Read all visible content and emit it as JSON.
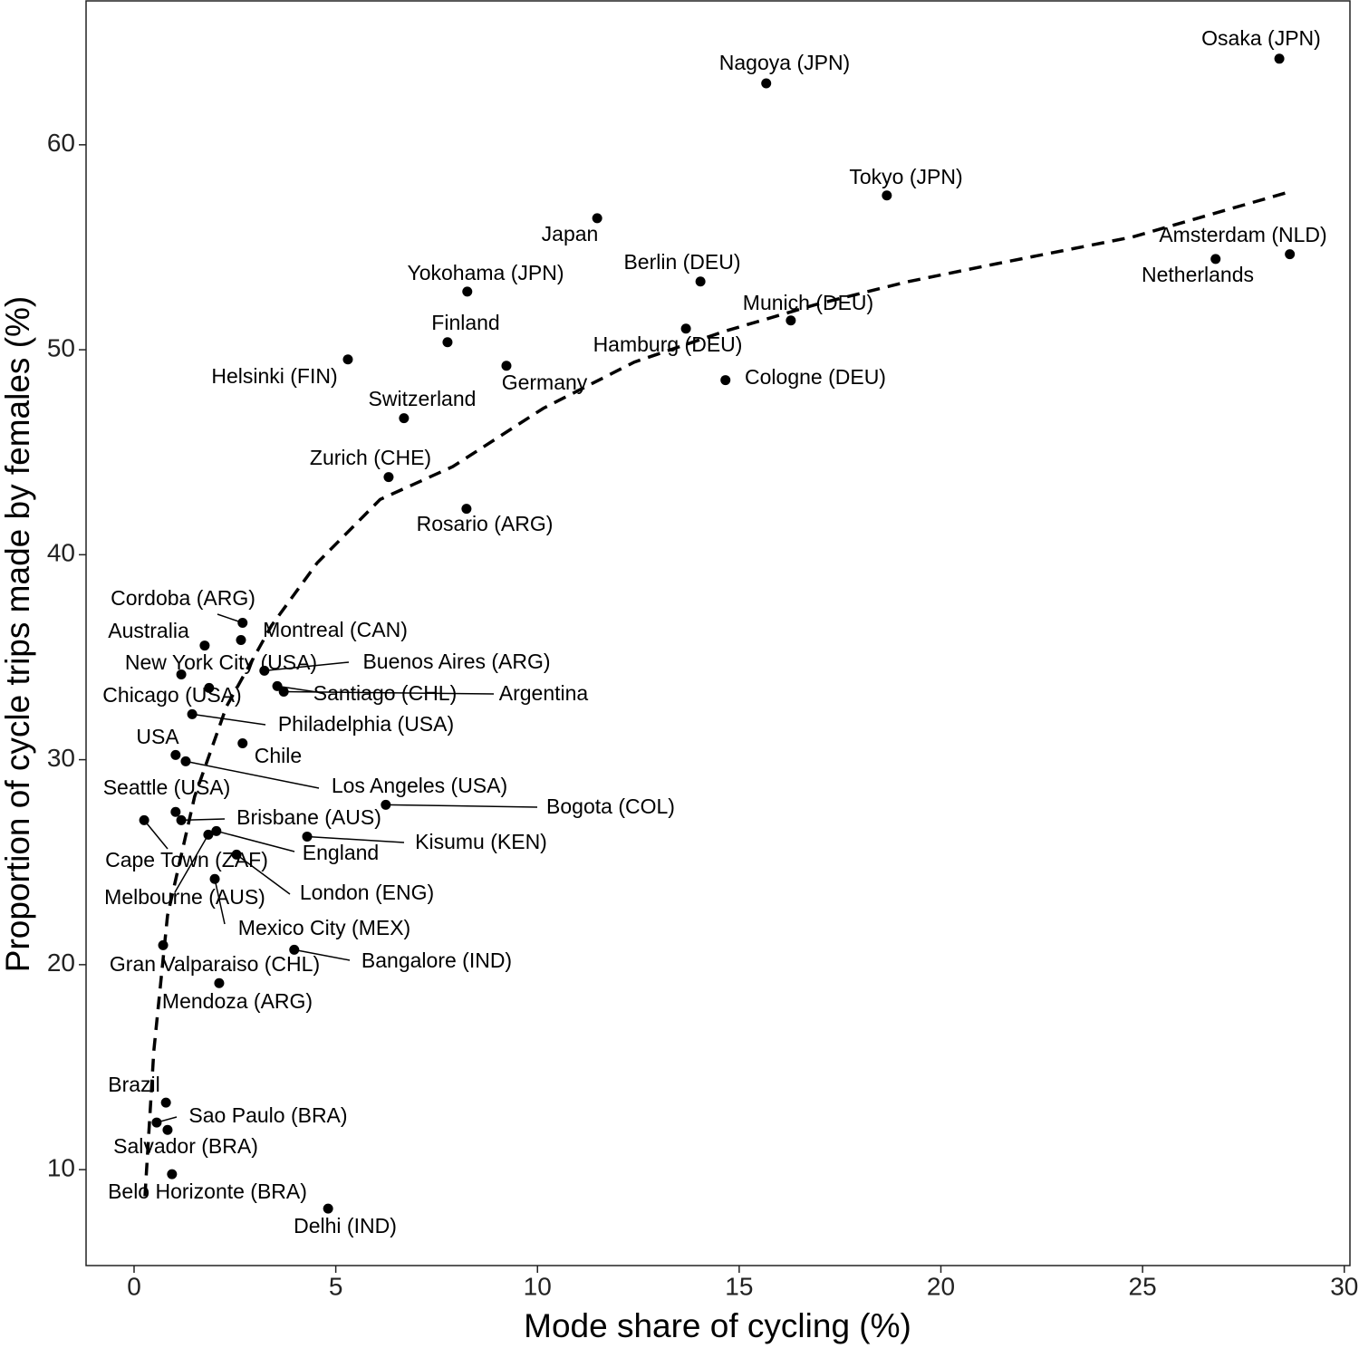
{
  "chart_data": {
    "type": "scatter",
    "xlabel": "Mode share of cycling (%)",
    "ylabel": "Proportion of cycle trips made by females (%)",
    "xlim": [
      -1.19,
      30.14
    ],
    "ylim": [
      5.32,
      67.02
    ],
    "xticks": [
      0,
      5,
      10,
      15,
      20,
      25,
      30
    ],
    "yticks": [
      10,
      20,
      30,
      40,
      50,
      60
    ],
    "series": [
      {
        "color": "#000000",
        "labels": [
          "Osaka (JPN)",
          "Nagoya (JPN)",
          "Tokyo (JPN)",
          "Japan",
          "Amsterdam (NLD)",
          "Netherlands",
          "Berlin (DEU)",
          "Yokohama (JPN)",
          "Munich (DEU)",
          "Hamburg (DEU)",
          "Finland",
          "Helsinki (FIN)",
          "Germany",
          "Cologne (DEU)",
          "Switzerland",
          "Zurich (CHE)",
          "Rosario (ARG)",
          "Cordoba (ARG)",
          "Montreal (CAN)",
          "Australia",
          "New York City (USA)",
          "Buenos Aires (ARG)",
          "Chicago (USA)",
          "Santiago (CHL)",
          "Argentina",
          "Philadelphia (USA)",
          "Chile",
          "USA",
          "Los Angeles (USA)",
          "Cape Town (ZAF)",
          "Seattle (USA)",
          "Brisbane (AUS)",
          "Bogota (COL)",
          "England",
          "Melbourne (AUS)",
          "Kisumu (KEN)",
          "London (ENG)",
          "Mexico City (MEX)",
          "Bangalore (IND)",
          "Gran Valparaiso (CHL)",
          "Mendoza (ARG)",
          "Brazil",
          "Sao Paulo (BRA)",
          "Salvador (BRA)",
          "Belo Horizonte (BRA)",
          "Delhi (IND)"
        ],
        "x": [
          28.39,
          15.67,
          18.66,
          11.48,
          28.65,
          26.81,
          14.04,
          8.26,
          16.28,
          13.68,
          7.77,
          5.3,
          9.23,
          14.66,
          6.69,
          6.31,
          8.24,
          2.69,
          2.65,
          1.75,
          1.17,
          3.23,
          1.86,
          3.55,
          3.71,
          1.44,
          2.69,
          1.03,
          1.28,
          0.25,
          1.03,
          1.17,
          6.24,
          2.04,
          1.84,
          4.29,
          2.54,
          2.0,
          3.97,
          0.72,
          2.11,
          0.79,
          0.56,
          0.83,
          0.94,
          4.81
        ],
        "values": [
          64.2,
          63.0,
          57.53,
          56.42,
          54.66,
          54.43,
          53.33,
          52.84,
          51.43,
          51.03,
          50.37,
          49.53,
          49.22,
          48.52,
          46.66,
          43.79,
          42.24,
          36.68,
          35.84,
          35.57,
          34.16,
          34.34,
          33.5,
          33.59,
          33.32,
          32.22,
          30.8,
          30.23,
          29.92,
          27.05,
          27.45,
          27.05,
          27.8,
          26.52,
          26.34,
          26.25,
          25.37,
          24.18,
          20.73,
          20.95,
          19.1,
          13.27,
          12.3,
          11.94,
          9.78,
          8.1
        ]
      }
    ],
    "fit_line": {
      "color": "#000000",
      "dashed": true,
      "x": [
        0.27,
        0.49,
        0.83,
        1.5,
        2.29,
        3.41,
        4.54,
        6.1,
        7.9,
        10.15,
        12.4,
        14.64,
        16.89,
        19.13,
        21.38,
        24.75,
        28.56
      ],
      "values": [
        8.7,
        15.8,
        22.4,
        28.2,
        32.6,
        36.55,
        39.6,
        42.7,
        44.3,
        47.15,
        49.4,
        50.9,
        52.2,
        53.3,
        54.2,
        55.5,
        57.66
      ]
    }
  }
}
